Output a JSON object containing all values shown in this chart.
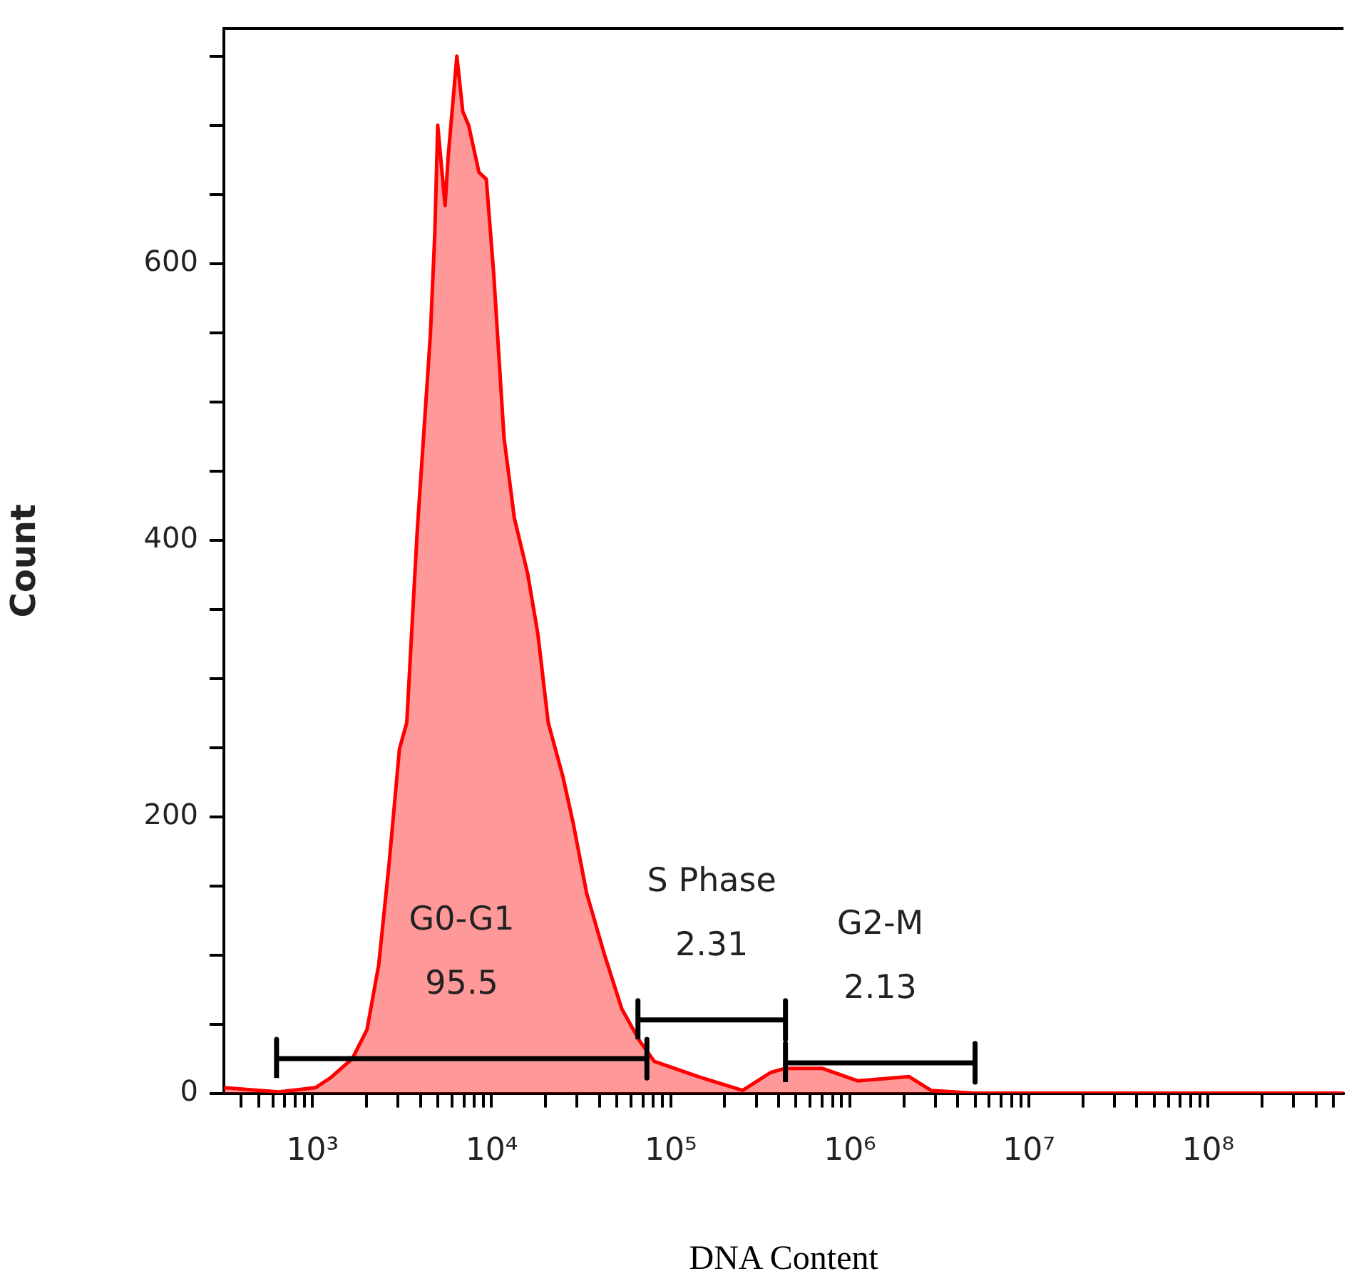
{
  "chart_data": {
    "type": "area",
    "xlabel": "DNA Content",
    "ylabel": "Count",
    "log": "x",
    "grid": false,
    "x": [
      321,
      647,
      1038,
      1255,
      1668,
      2015,
      2344,
      2677,
      3058,
      3360,
      3837,
      4549,
      4819,
      5002,
      5499,
      5711,
      6397,
      6902,
      7443,
      8498,
      9340,
      10270,
      11730,
      13390,
      15880,
      18130,
      20700,
      25000,
      28570,
      33880,
      42500,
      53300,
      66900,
      80900,
      142800,
      251800,
      361000,
      436600,
      700000,
      1104000,
      2142000,
      2844000,
      4920000,
      31500000,
      570000000
    ],
    "series": [
      {
        "color": "#ff0000",
        "values": [
          4,
          1,
          4,
          11,
          25,
          46,
          93,
          166,
          249,
          268,
          405,
          548,
          622,
          700,
          642,
          676,
          750,
          710,
          700,
          666,
          661,
          593,
          474,
          416,
          376,
          332,
          268,
          229,
          195,
          145,
          101,
          61,
          38,
          23,
          12,
          2,
          15,
          18,
          18,
          9,
          12,
          2,
          0,
          0,
          0
        ]
      },
      {
        "type": "line",
        "color": "#000000",
        "x": [
          630,
          630,
          630,
          73600,
          73600,
          73600
        ],
        "values": [
          11,
          39,
          25,
          25,
          39,
          11
        ]
      },
      {
        "type": "line",
        "color": "#000000",
        "x": [
          65600,
          65600,
          65600,
          437000,
          437000,
          437000
        ],
        "values": [
          39,
          67,
          53,
          53,
          67,
          39
        ]
      },
      {
        "type": "line",
        "color": "#000000",
        "x": [
          437000,
          437000,
          437000,
          5000000,
          5000000,
          5000000
        ],
        "values": [
          8,
          36,
          22,
          22,
          36,
          8
        ]
      }
    ],
    "xlim": [
      320,
      570000000
    ],
    "xticks": [
      {
        "value": 400,
        "label": null
      },
      {
        "value": 500,
        "label": null
      },
      {
        "value": 600,
        "label": null
      },
      {
        "value": 700,
        "label": null
      },
      {
        "value": 800,
        "label": null
      },
      {
        "value": 900,
        "label": null
      },
      {
        "value": 1000,
        "label": "10³"
      },
      {
        "value": 2000,
        "label": null
      },
      {
        "value": 3000,
        "label": null
      },
      {
        "value": 4000,
        "label": null
      },
      {
        "value": 5000,
        "label": null
      },
      {
        "value": 6000,
        "label": null
      },
      {
        "value": 7000,
        "label": null
      },
      {
        "value": 8000,
        "label": null
      },
      {
        "value": 9000,
        "label": null
      },
      {
        "value": 10000,
        "label": "10⁴"
      },
      {
        "value": 20000,
        "label": null
      },
      {
        "value": 30000,
        "label": null
      },
      {
        "value": 40000,
        "label": null
      },
      {
        "value": 50000,
        "label": null
      },
      {
        "value": 60000,
        "label": null
      },
      {
        "value": 70000,
        "label": null
      },
      {
        "value": 80000,
        "label": null
      },
      {
        "value": 90000,
        "label": null
      },
      {
        "value": 100000,
        "label": "10⁵"
      },
      {
        "value": 200000,
        "label": null
      },
      {
        "value": 300000,
        "label": null
      },
      {
        "value": 400000,
        "label": null
      },
      {
        "value": 500000,
        "label": null
      },
      {
        "value": 600000,
        "label": null
      },
      {
        "value": 700000,
        "label": null
      },
      {
        "value": 800000,
        "label": null
      },
      {
        "value": 900000,
        "label": null
      },
      {
        "value": 1000000,
        "label": "10⁶"
      },
      {
        "value": 2000000,
        "label": null
      },
      {
        "value": 3000000,
        "label": null
      },
      {
        "value": 4000000,
        "label": null
      },
      {
        "value": 5000000,
        "label": null
      },
      {
        "value": 6000000,
        "label": null
      },
      {
        "value": 7000000,
        "label": null
      },
      {
        "value": 8000000,
        "label": null
      },
      {
        "value": 9000000,
        "label": null
      },
      {
        "value": 10000000,
        "label": "10⁷"
      },
      {
        "value": 20000000,
        "label": null
      },
      {
        "value": 30000000,
        "label": null
      },
      {
        "value": 40000000,
        "label": null
      },
      {
        "value": 50000000,
        "label": null
      },
      {
        "value": 60000000,
        "label": null
      },
      {
        "value": 70000000,
        "label": null
      },
      {
        "value": 80000000,
        "label": null
      },
      {
        "value": 90000000,
        "label": null
      },
      {
        "value": 100000000,
        "label": "10⁸"
      },
      {
        "value": 200000000,
        "label": null
      },
      {
        "value": 300000000,
        "label": null
      },
      {
        "value": 400000000,
        "label": null
      },
      {
        "value": 500000000,
        "label": null
      }
    ],
    "ylim": [
      0,
      770
    ],
    "yticks": [
      0,
      {
        "value": 50,
        "label": null
      },
      {
        "value": 100,
        "label": null
      },
      {
        "value": 150,
        "label": null
      },
      200,
      {
        "value": 250,
        "label": null
      },
      {
        "value": 300,
        "label": null
      },
      {
        "value": 350,
        "label": null
      },
      400,
      {
        "value": 450,
        "label": null
      },
      {
        "value": 500,
        "label": null
      },
      {
        "value": 550,
        "label": null
      },
      600,
      {
        "value": 650,
        "label": null
      },
      {
        "value": 700,
        "label": null
      },
      {
        "value": 750,
        "label": null
      }
    ],
    "annotations": [
      "G0-G1",
      "95.5",
      "S Phase",
      "2.31",
      "G2-M",
      "2.13"
    ]
  }
}
